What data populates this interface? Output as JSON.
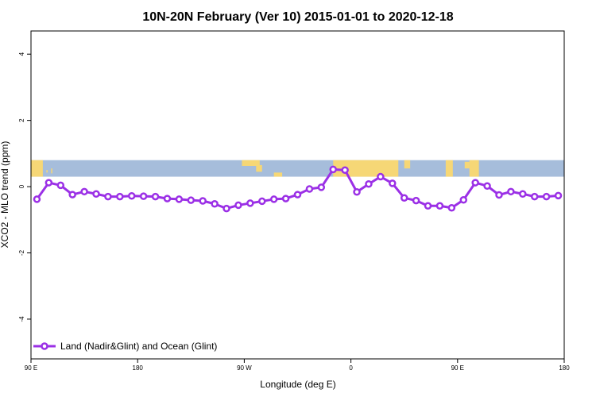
{
  "chart_data": {
    "type": "line",
    "title": "10N-20N February (Ver 10)   2015-01-01 to 2020-12-18",
    "xlabel": "Longitude (deg E)",
    "ylabel": "XCO2 - MLO trend (ppm)",
    "xlim": [
      90,
      540
    ],
    "ylim": [
      -5.2,
      4.7
    ],
    "x_ticks": [
      {
        "value": 90,
        "label": "90 E"
      },
      {
        "value": 180,
        "label": "180"
      },
      {
        "value": 270,
        "label": "90 W"
      },
      {
        "value": 360,
        "label": "0"
      },
      {
        "value": 450,
        "label": "90 E"
      },
      {
        "value": 540,
        "label": "180"
      }
    ],
    "y_ticks": [
      -4,
      -2,
      0,
      2,
      4
    ],
    "legend_position": "bottom-left",
    "series_color": "#9b30e6",
    "map_ocean_color": "#a6bddb",
    "map_land_color": "#f6d776",
    "map_band_y": [
      0.3,
      0.8
    ],
    "series": [
      {
        "name": "Land (Nadir&Glint) and Ocean (Glint)",
        "x": [
          95,
          105,
          115,
          125,
          135,
          145,
          155,
          165,
          175,
          185,
          195,
          205,
          215,
          225,
          235,
          245,
          255,
          265,
          275,
          285,
          295,
          305,
          315,
          325,
          335,
          345,
          355,
          365,
          375,
          385,
          395,
          405,
          415,
          425,
          435,
          445,
          455,
          465,
          475,
          485,
          495,
          505,
          515,
          525,
          535
        ],
        "y": [
          -0.38,
          0.12,
          0.04,
          -0.24,
          -0.15,
          -0.22,
          -0.3,
          -0.3,
          -0.28,
          -0.29,
          -0.3,
          -0.36,
          -0.38,
          -0.41,
          -0.43,
          -0.52,
          -0.66,
          -0.56,
          -0.5,
          -0.44,
          -0.38,
          -0.36,
          -0.24,
          -0.07,
          -0.02,
          0.52,
          0.5,
          -0.16,
          0.08,
          0.3,
          0.1,
          -0.34,
          -0.42,
          -0.58,
          -0.58,
          -0.64,
          -0.4,
          0.12,
          0.02,
          -0.25,
          -0.15,
          -0.22,
          -0.3,
          -0.3,
          -0.27
        ]
      }
    ]
  }
}
